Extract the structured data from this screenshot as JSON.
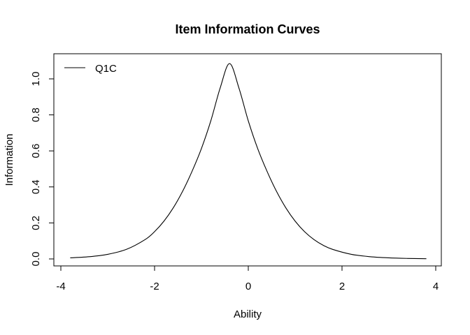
{
  "chart_data": {
    "type": "line",
    "title": "Item Information Curves",
    "xlabel": "Ability",
    "ylabel": "Information",
    "xlim": [
      -4,
      4
    ],
    "ylim": [
      0,
      1.1
    ],
    "x_ticks": [
      "-4",
      "-2",
      "0",
      "2",
      "4"
    ],
    "y_ticks": [
      "0.0",
      "0.2",
      "0.4",
      "0.6",
      "0.8",
      "1.0"
    ],
    "grid": false,
    "legend_position": "top-left",
    "series": [
      {
        "name": "Q1C",
        "color": "#000000",
        "x": [
          -3.8,
          -3.4,
          -3.0,
          -2.6,
          -2.2,
          -2.0,
          -1.8,
          -1.6,
          -1.4,
          -1.2,
          -1.0,
          -0.8,
          -0.6,
          -0.4,
          -0.2,
          0.0,
          0.2,
          0.4,
          0.6,
          0.8,
          1.0,
          1.2,
          1.4,
          1.6,
          1.8,
          2.2,
          2.6,
          3.0,
          3.4,
          3.8
        ],
        "y": [
          0.0059,
          0.0123,
          0.0256,
          0.0531,
          0.1078,
          0.1517,
          0.2099,
          0.2843,
          0.3764,
          0.4867,
          0.6133,
          0.7667,
          0.9495,
          1.085,
          0.9495,
          0.7667,
          0.6133,
          0.4867,
          0.3764,
          0.2843,
          0.2099,
          0.1517,
          0.1078,
          0.0755,
          0.0531,
          0.0256,
          0.0123,
          0.0059,
          0.0028,
          0.0013
        ]
      }
    ]
  }
}
